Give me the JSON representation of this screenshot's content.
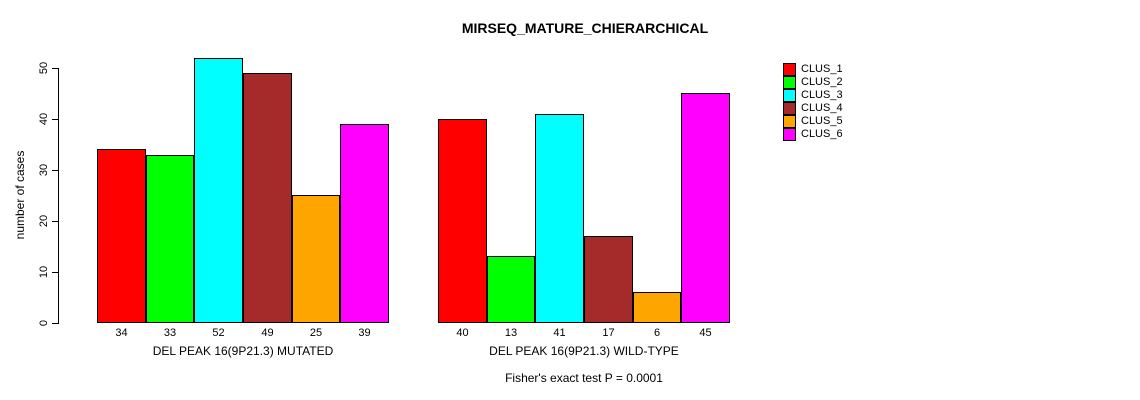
{
  "title": "MIRSEQ_MATURE_CHIERARCHICAL",
  "chart_data": {
    "type": "bar",
    "title": "MIRSEQ_MATURE_CHIERARCHICAL",
    "xlabel": "",
    "ylabel": "number of cases",
    "ylim": [
      0,
      52
    ],
    "yticks": [
      0,
      10,
      20,
      30,
      40,
      50
    ],
    "grid": false,
    "legend_position": "right",
    "series_names": [
      "CLUS_1",
      "CLUS_2",
      "CLUS_3",
      "CLUS_4",
      "CLUS_5",
      "CLUS_6"
    ],
    "colors": [
      "#ff0000",
      "#00ff00",
      "#00ffff",
      "#a52a2a",
      "#ffa500",
      "#ff00ff"
    ],
    "groups": [
      {
        "label": "DEL PEAK 16(9P21.3) MUTATED",
        "values": [
          34,
          33,
          52,
          49,
          25,
          39
        ]
      },
      {
        "label": "DEL PEAK 16(9P21.3) WILD-TYPE",
        "values": [
          40,
          13,
          41,
          17,
          6,
          45
        ]
      }
    ],
    "annotation": "Fisher's exact test P = 0.0001"
  },
  "legend": {
    "entries": [
      {
        "label": "CLUS_1",
        "color": "#ff0000"
      },
      {
        "label": "CLUS_2",
        "color": "#00ff00"
      },
      {
        "label": "CLUS_3",
        "color": "#00ffff"
      },
      {
        "label": "CLUS_4",
        "color": "#a52a2a"
      },
      {
        "label": "CLUS_5",
        "color": "#ffa500"
      },
      {
        "label": "CLUS_6",
        "color": "#ff00ff"
      }
    ]
  }
}
